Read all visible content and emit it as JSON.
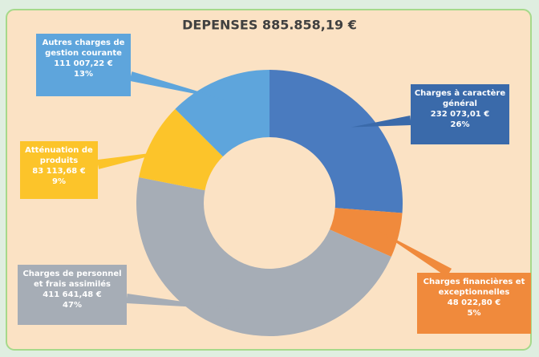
{
  "chart_data": {
    "type": "donut",
    "title": "DEPENSES 885.858,19 €",
    "categories": [
      "Charges à caractère général",
      "Charges financières et exceptionnelles",
      "Charges de personnel et frais assimilés",
      "Atténuation de produits",
      "Autres charges de gestion courante"
    ],
    "values": [
      232073.01,
      48022.8,
      411641.48,
      83113.68,
      111007.22
    ],
    "value_labels": [
      "232 073,01 €",
      "48 022,80 €",
      "411 641,48 €",
      "83 113,68 €",
      "111 007,22 €"
    ],
    "shares": [
      26,
      5,
      47,
      9,
      13
    ],
    "share_labels": [
      "26%",
      "5%",
      "47%",
      "9%",
      "13%"
    ],
    "colors": [
      "#4a7bbf",
      "#f08a3c",
      "#a6adb6",
      "#fcc42a",
      "#5ea5dc"
    ],
    "label_colors": [
      "#3a6aaa",
      "#f08a3c",
      "#a6adb6",
      "#fcc42a",
      "#5ea5dc"
    ]
  }
}
